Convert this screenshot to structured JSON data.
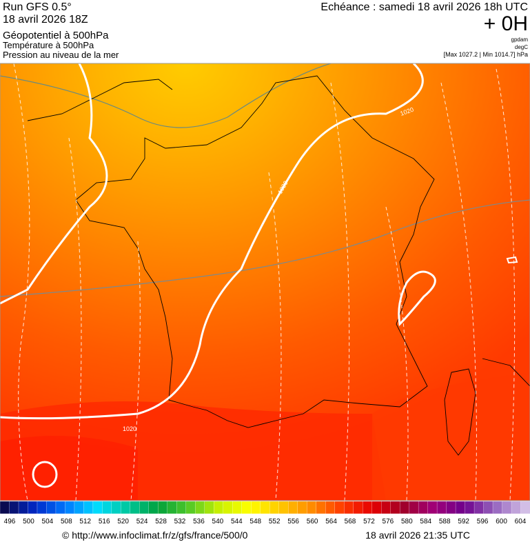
{
  "header": {
    "left": [
      "Run GFS 0.5°",
      "18 avril 2026 18Z",
      "Géopotentiel à 500hPa",
      "Température à 500hPa",
      "Pression au niveau de la mer"
    ],
    "right": {
      "echeance": "Echéance : samedi 18 avril 2026 18h UTC",
      "offset": "+ 0H",
      "units": [
        "gpdam",
        "degC"
      ],
      "pressure": "[Max 1027.2 | Min 1014.7] hPa"
    }
  },
  "map": {
    "contour_labels": [
      "1020",
      "1020",
      "1020"
    ]
  },
  "colorbar": {
    "labels": [
      496,
      500,
      504,
      508,
      512,
      516,
      520,
      524,
      528,
      532,
      536,
      540,
      544,
      548,
      552,
      556,
      560,
      564,
      568,
      572,
      576,
      580,
      584,
      588,
      592,
      596,
      600,
      604
    ]
  },
  "footer": {
    "source": "© http://www.infoclimat.fr/z/gfs/france/500/0",
    "timestamp": "18 avril 2026 21:35 UTC"
  }
}
